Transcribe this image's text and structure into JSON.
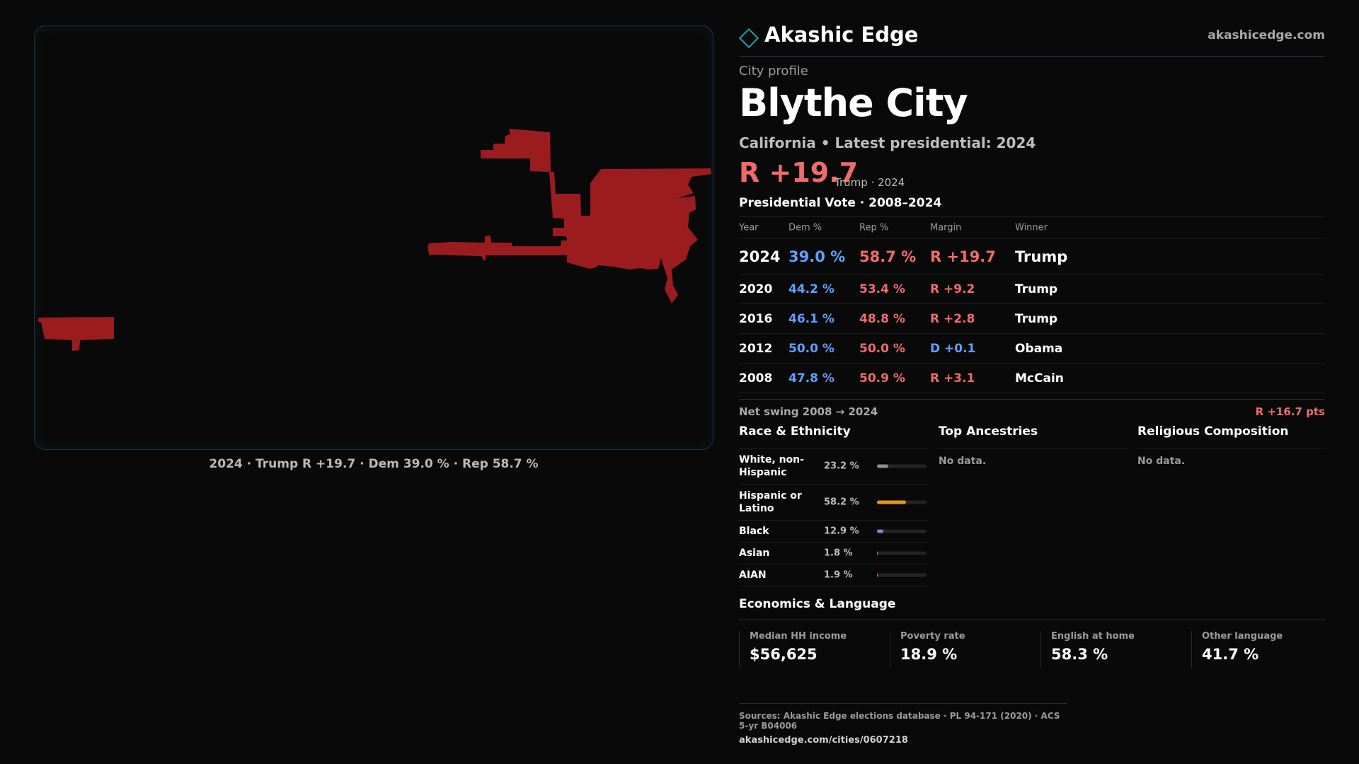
{
  "map": {
    "fill_color": "#9b1c1f",
    "caption": "2024 · Trump R +19.7 · Dem 39.0 % · Rep 58.7 %"
  },
  "brand": {
    "name": "Akashic Edge",
    "url": "akashicedge.com",
    "logo_icon": "diamond-icon"
  },
  "profile": {
    "kicker": "City profile",
    "name": "Blythe City",
    "subtitle": "California • Latest presidential: 2024",
    "margin": "R +19.7",
    "margin_note": "Trump · 2024"
  },
  "vote": {
    "heading": "Presidential Vote · 2008–2024",
    "headers": {
      "year": "Year",
      "dem": "Dem %",
      "rep": "Rep %",
      "margin": "Margin",
      "winner": "Winner"
    },
    "rows": [
      {
        "year": "2024",
        "dem": "39.0 %",
        "rep": "58.7 %",
        "margin": "R +19.7",
        "winner": "Trump",
        "party": "R"
      },
      {
        "year": "2020",
        "dem": "44.2 %",
        "rep": "53.4 %",
        "margin": "R +9.2",
        "winner": "Trump",
        "party": "R"
      },
      {
        "year": "2016",
        "dem": "46.1 %",
        "rep": "48.8 %",
        "margin": "R +2.8",
        "winner": "Trump",
        "party": "R"
      },
      {
        "year": "2012",
        "dem": "50.0 %",
        "rep": "50.0 %",
        "margin": "D +0.1",
        "winner": "Obama",
        "party": "D"
      },
      {
        "year": "2008",
        "dem": "47.8 %",
        "rep": "50.9 %",
        "margin": "R +3.1",
        "winner": "McCain",
        "party": "R"
      }
    ],
    "swing_label": "Net swing 2008 → 2024",
    "swing_value": "R +16.7 pts"
  },
  "race": {
    "heading": "Race & Ethnicity",
    "rows": [
      {
        "name": "White, non-Hispanic",
        "pct": "23.2 %",
        "value": 23.2,
        "color": "#8a8f9a"
      },
      {
        "name": "Hispanic or Latino",
        "pct": "58.2 %",
        "value": 58.2,
        "color": "#e09a1a"
      },
      {
        "name": "Black",
        "pct": "12.9 %",
        "value": 12.9,
        "color": "#8c7bd8"
      },
      {
        "name": "Asian",
        "pct": "1.8 %",
        "value": 1.8,
        "color": "#2bb3a0"
      },
      {
        "name": "AIAN",
        "pct": "1.9 %",
        "value": 1.9,
        "color": "#e07a2a"
      }
    ]
  },
  "ancestries": {
    "heading": "Top Ancestries",
    "empty": "No data."
  },
  "religion": {
    "heading": "Religious Composition",
    "empty": "No data."
  },
  "economics": {
    "heading": "Economics & Language",
    "cells": [
      {
        "label": "Median HH income",
        "value": "$56,625"
      },
      {
        "label": "Poverty rate",
        "value": "18.9 %"
      },
      {
        "label": "English at home",
        "value": "58.3 %"
      },
      {
        "label": "Other language",
        "value": "41.7 %"
      }
    ]
  },
  "footer": {
    "sources": "Sources: Akashic Edge elections database · PL 94-171 (2020) · ACS 5-yr B04006",
    "link": "akashicedge.com/cities/0607218"
  }
}
